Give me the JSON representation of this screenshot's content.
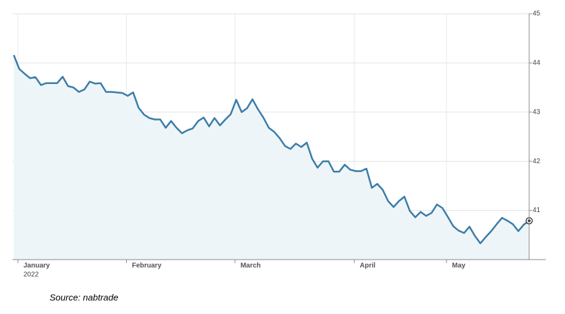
{
  "chart_data": {
    "type": "line",
    "categories": [
      "January",
      null,
      null,
      null,
      null,
      null,
      null,
      null,
      null,
      null,
      null,
      null,
      null,
      null,
      null,
      null,
      null,
      null,
      null,
      null,
      "February",
      null,
      null,
      null,
      null,
      null,
      null,
      null,
      null,
      null,
      null,
      null,
      null,
      null,
      null,
      null,
      null,
      null,
      null,
      null,
      "March",
      null,
      null,
      null,
      null,
      null,
      null,
      null,
      null,
      null,
      null,
      null,
      null,
      null,
      null,
      null,
      null,
      null,
      null,
      null,
      null,
      null,
      "April",
      null,
      null,
      null,
      null,
      null,
      null,
      null,
      null,
      null,
      null,
      null,
      null,
      null,
      null,
      null,
      null,
      "May",
      null,
      null,
      null,
      null,
      null,
      null,
      null,
      null,
      null,
      null,
      null,
      null,
      null,
      null,
      null,
      null
    ],
    "year": "2022",
    "values": [
      44.16,
      43.88,
      43.78,
      43.69,
      43.71,
      43.55,
      43.59,
      43.59,
      43.59,
      43.72,
      43.53,
      43.5,
      43.41,
      43.46,
      43.62,
      43.58,
      43.59,
      43.41,
      43.41,
      43.4,
      43.39,
      43.33,
      43.4,
      43.09,
      42.95,
      42.88,
      42.85,
      42.85,
      42.68,
      42.82,
      42.68,
      42.57,
      42.63,
      42.67,
      42.82,
      42.89,
      42.71,
      42.88,
      42.73,
      42.85,
      42.96,
      43.25,
      43.0,
      43.08,
      43.26,
      43.06,
      42.89,
      42.68,
      42.6,
      42.47,
      42.31,
      42.25,
      42.36,
      42.29,
      42.38,
      42.05,
      41.87,
      42.0,
      42.0,
      41.79,
      41.79,
      41.93,
      41.83,
      41.8,
      41.8,
      41.85,
      41.46,
      41.54,
      41.42,
      41.19,
      41.07,
      41.19,
      41.28,
      40.99,
      40.86,
      40.97,
      40.89,
      40.95,
      41.12,
      41.05,
      40.87,
      40.68,
      40.59,
      40.54,
      40.67,
      40.48,
      40.33,
      40.46,
      40.58,
      40.72,
      40.85,
      40.79,
      40.72,
      40.58,
      40.71,
      40.79
    ],
    "color": "#3a7ca8",
    "fill": "#eef5f8",
    "ylim": [
      40,
      45
    ],
    "yticks": [
      41,
      42,
      43,
      44,
      45
    ],
    "grid": true,
    "source": "Source: nabtrade"
  }
}
